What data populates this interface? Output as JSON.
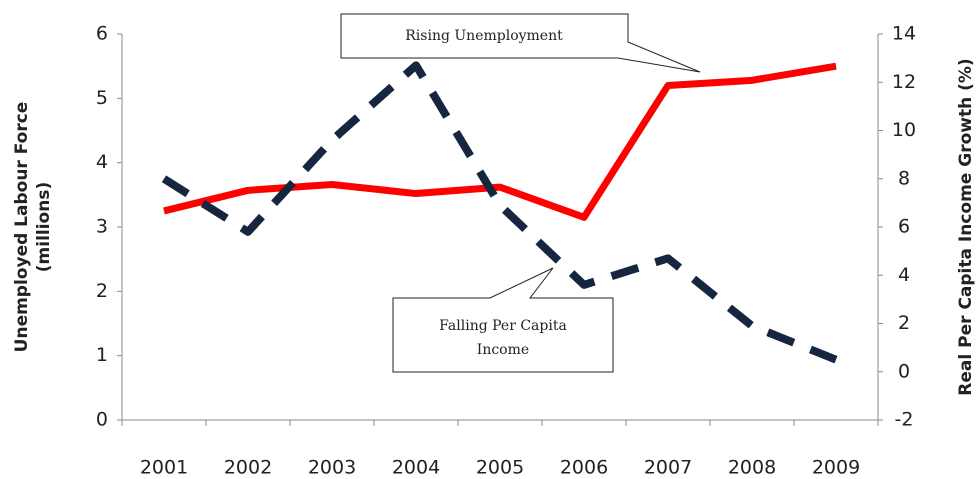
{
  "chart_data": {
    "type": "line",
    "y_label": [
      "Unemployed Labour Force",
      "(millions)"
    ],
    "y2_label": "Real Per Capita Income Growth (%)",
    "categories": [
      "2001",
      "2002",
      "2003",
      "2004",
      "2005",
      "2006",
      "2007",
      "2008",
      "2009"
    ],
    "series": [
      {
        "name": "Unemployed Labour Force",
        "color": "#ff0000",
        "dash": false,
        "values": [
          3.25,
          3.57,
          3.66,
          3.52,
          3.62,
          3.15,
          5.2,
          5.28,
          5.5
        ]
      },
      {
        "name": "Real Per Capita Income Growth",
        "color": "#17263f",
        "dash": true,
        "axis": "y2",
        "values": [
          8.0,
          5.8,
          9.6,
          12.7,
          6.9,
          3.6,
          4.7,
          1.9,
          0.5
        ]
      }
    ],
    "ylim": [
      0,
      6
    ],
    "yticks": [
      0,
      1,
      2,
      3,
      4,
      5,
      6
    ],
    "y2lim": [
      -2,
      14
    ],
    "y2ticks": [
      -2,
      0,
      2,
      4,
      6,
      8,
      10,
      12,
      14
    ],
    "grid": false,
    "annotations": [
      "Rising Unemployment",
      [
        "Falling Per Capita",
        "Income"
      ]
    ]
  }
}
